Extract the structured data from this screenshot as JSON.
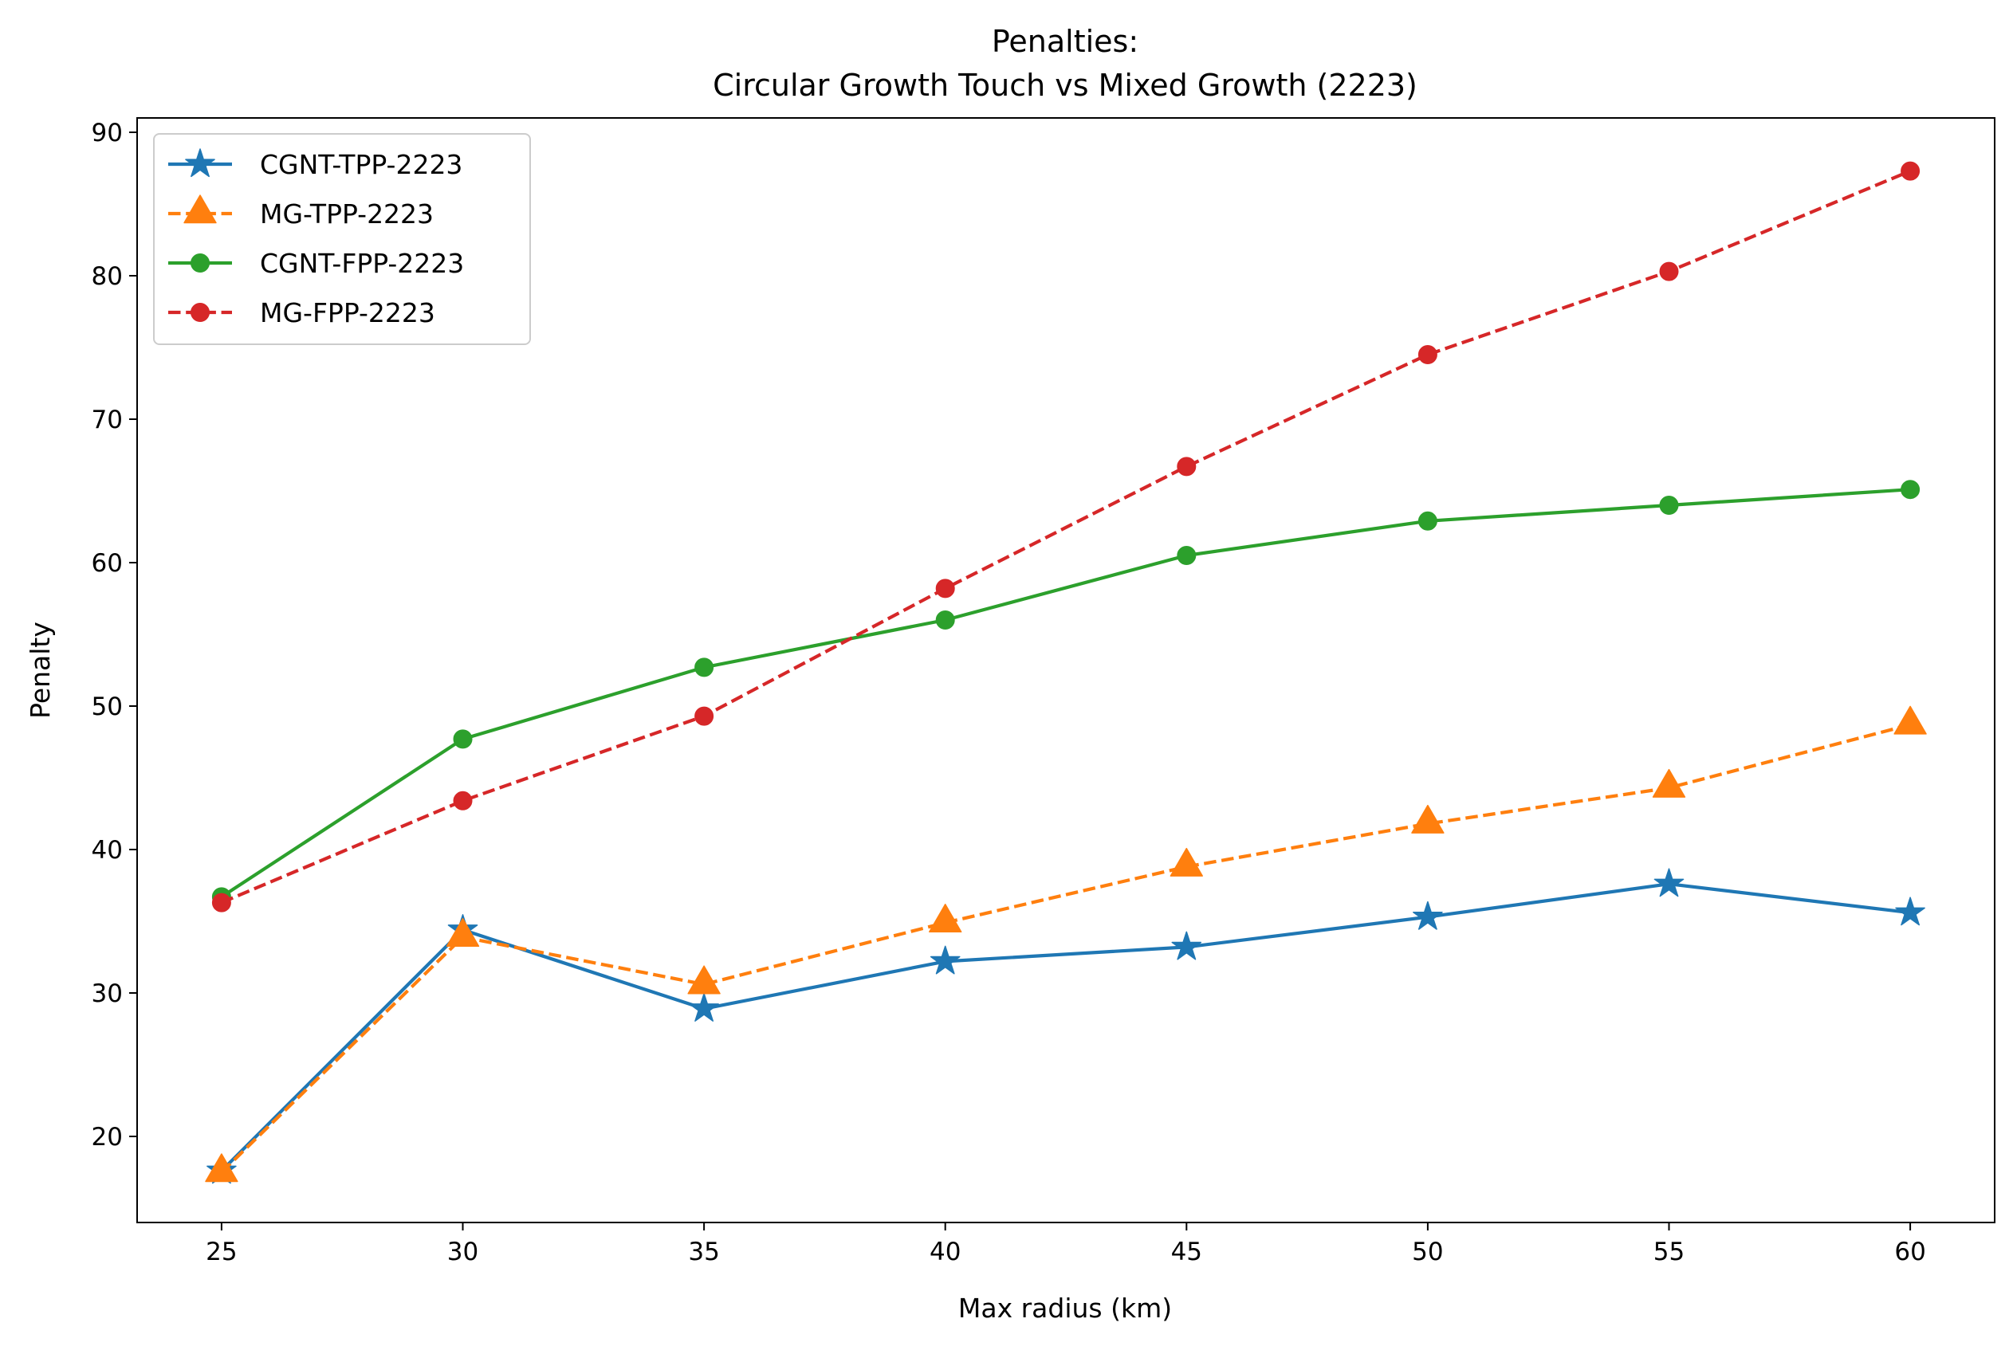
{
  "chart_data": {
    "type": "line",
    "title_lines": [
      "Penalties:",
      "Circular Growth Touch vs Mixed Growth (2223)"
    ],
    "xlabel": "Max radius (km)",
    "ylabel": "Penalty",
    "x": [
      25,
      30,
      35,
      40,
      45,
      50,
      55,
      60
    ],
    "xlim": [
      23.25,
      61.75
    ],
    "ylim": [
      14.0,
      91.0
    ],
    "xticks": [
      "25",
      "30",
      "35",
      "40",
      "45",
      "50",
      "55",
      "60"
    ],
    "yticks": [
      "20",
      "30",
      "40",
      "50",
      "60",
      "70",
      "80",
      "90"
    ],
    "grid": false,
    "legend_position": "top-left",
    "series": [
      {
        "name": "CGNT-TPP-2223",
        "color": "#1f77b4",
        "dash": "solid",
        "marker": "star",
        "values": [
          17.6,
          34.4,
          28.9,
          32.2,
          33.2,
          35.3,
          37.6,
          35.6
        ]
      },
      {
        "name": "MG-TPP-2223",
        "color": "#ff7f0e",
        "dash": "dashed",
        "marker": "triangle",
        "values": [
          17.5,
          33.9,
          30.6,
          34.9,
          38.8,
          41.8,
          44.3,
          48.7
        ]
      },
      {
        "name": "CGNT-FPP-2223",
        "color": "#2ca02c",
        "dash": "solid",
        "marker": "circle",
        "values": [
          36.7,
          47.7,
          52.7,
          56.0,
          60.5,
          62.9,
          64.0,
          65.1
        ]
      },
      {
        "name": "MG-FPP-2223",
        "color": "#d62728",
        "dash": "dashed",
        "marker": "circle",
        "values": [
          36.3,
          43.4,
          49.3,
          58.2,
          66.7,
          74.5,
          80.3,
          87.3
        ]
      }
    ]
  }
}
